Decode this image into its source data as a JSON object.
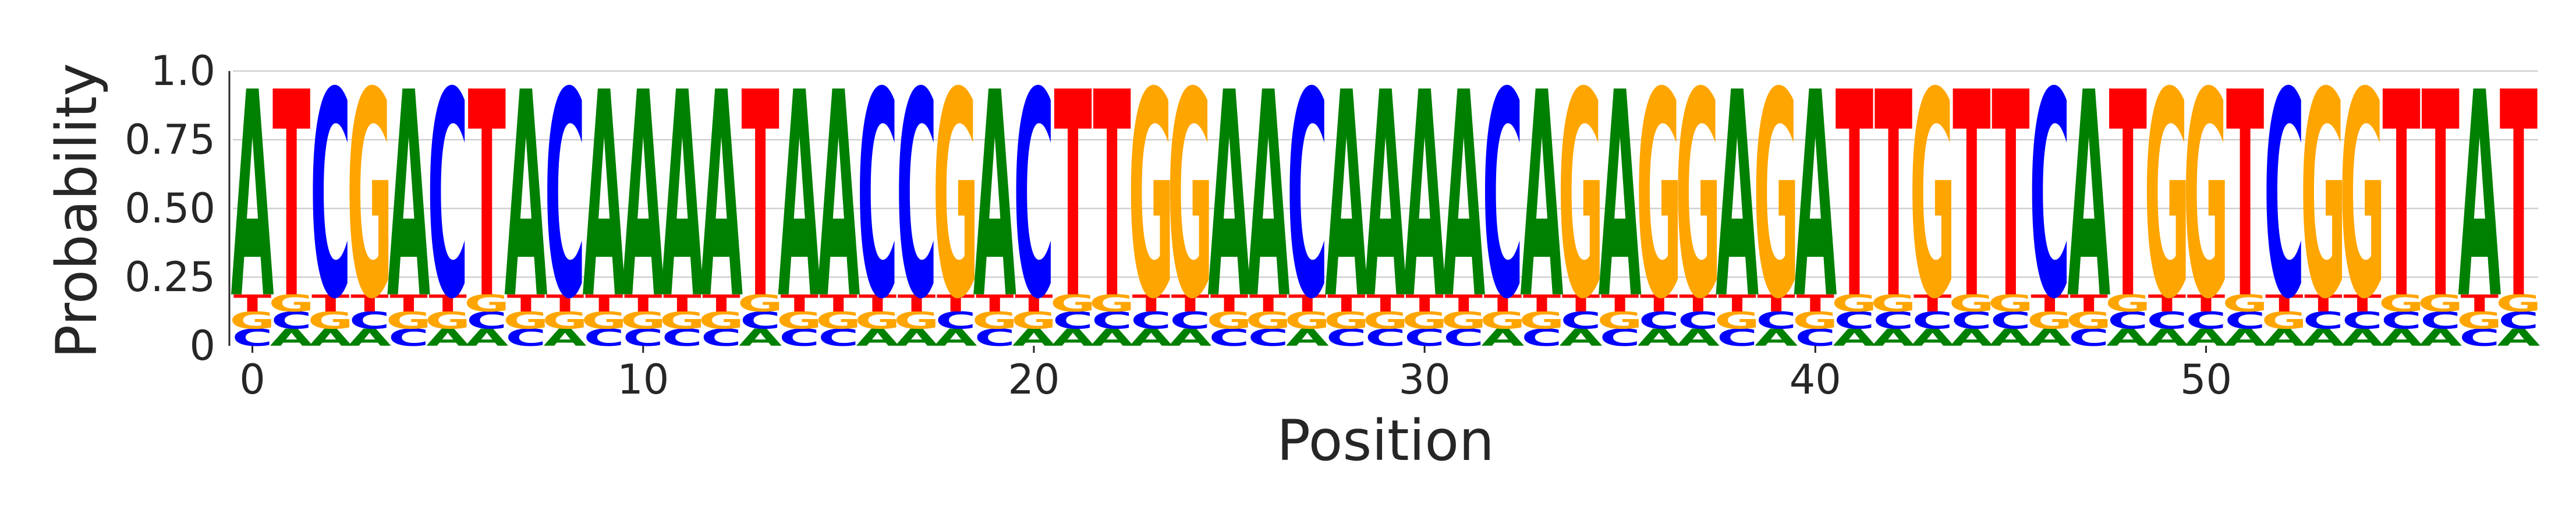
{
  "chart_data": {
    "type": "sequence-logo",
    "ylabel": "Probability",
    "xlabel": "Position",
    "ylim": [
      0,
      1.0
    ],
    "yticks": [
      0,
      0.25,
      0.5,
      0.75,
      1.0
    ],
    "ytick_labels": [
      "0",
      "0.25",
      "0.50",
      "0.75",
      "1.0"
    ],
    "xticks": [
      0,
      10,
      20,
      30,
      40,
      50
    ],
    "xtick_labels": [
      "0",
      "10",
      "20",
      "30",
      "40",
      "50"
    ],
    "grid": "horizontal",
    "letter_colors": {
      "A": "#008000",
      "C": "#0000ff",
      "G": "#ffa500",
      "T": "#ff0000"
    },
    "dominant_probability": 0.75,
    "background_probabilities": {
      "A": 0.0625,
      "C": 0.0625,
      "G": 0.0625,
      "T": 0.0625
    },
    "sequence": "ATCGACTACAAAATAACCGACTTGGAACAAAACAGAGGAGATTGTTCATGGTCGGTTAT"
  }
}
